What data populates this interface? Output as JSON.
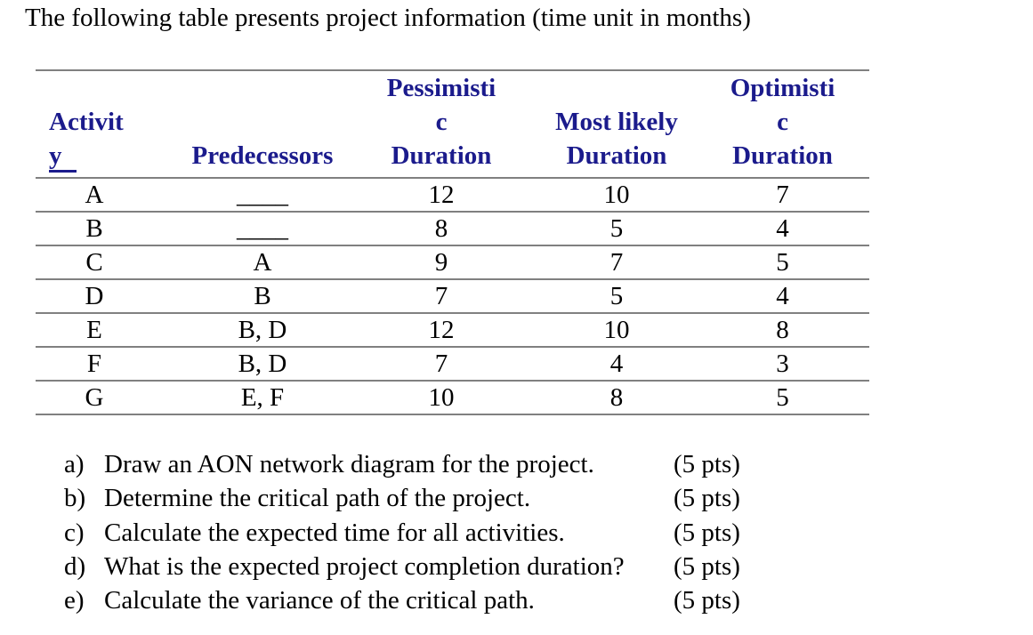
{
  "page": {
    "title": "The following table presents project information (time unit in months)"
  },
  "colors": {
    "header_text": "#1b1b8c",
    "table_border": "#808080",
    "body_text": "#000000"
  },
  "table": {
    "headers": {
      "activity": {
        "line1": "Activit",
        "line2": "y"
      },
      "predecessors": "Predecessors",
      "pessimistic": "Pessimisti\nc\nDuration",
      "most_likely": "Most likely\nDuration",
      "optimistic": "Optimisti\nc\nDuration"
    },
    "rows": [
      {
        "activity": "A",
        "predecessors": "____",
        "pessimistic": "12",
        "most_likely": "10",
        "optimistic": "7"
      },
      {
        "activity": "B",
        "predecessors": "____",
        "pessimistic": "8",
        "most_likely": "5",
        "optimistic": "4"
      },
      {
        "activity": "C",
        "predecessors": "A",
        "pessimistic": "9",
        "most_likely": "7",
        "optimistic": "5"
      },
      {
        "activity": "D",
        "predecessors": "B",
        "pessimistic": "7",
        "most_likely": "5",
        "optimistic": "4"
      },
      {
        "activity": "E",
        "predecessors": "B, D",
        "pessimistic": "12",
        "most_likely": "10",
        "optimistic": "8"
      },
      {
        "activity": "F",
        "predecessors": "B, D",
        "pessimistic": "7",
        "most_likely": "4",
        "optimistic": "3"
      },
      {
        "activity": "G",
        "predecessors": "E, F",
        "pessimistic": "10",
        "most_likely": "8",
        "optimistic": "5"
      }
    ]
  },
  "questions": [
    {
      "label": "a)",
      "text": "Draw an AON network diagram for the project.",
      "pts": "(5 pts)"
    },
    {
      "label": "b)",
      "text": "Determine the critical path of the project.",
      "pts": "(5 pts)"
    },
    {
      "label": "c)",
      "text": "Calculate the expected time for all activities.",
      "pts": "(5 pts)"
    },
    {
      "label": "d)",
      "text": "What is the expected project completion duration?",
      "pts": "(5 pts)"
    },
    {
      "label": "e)",
      "text": "Calculate the variance of the critical path.",
      "pts": "(5 pts)"
    }
  ]
}
